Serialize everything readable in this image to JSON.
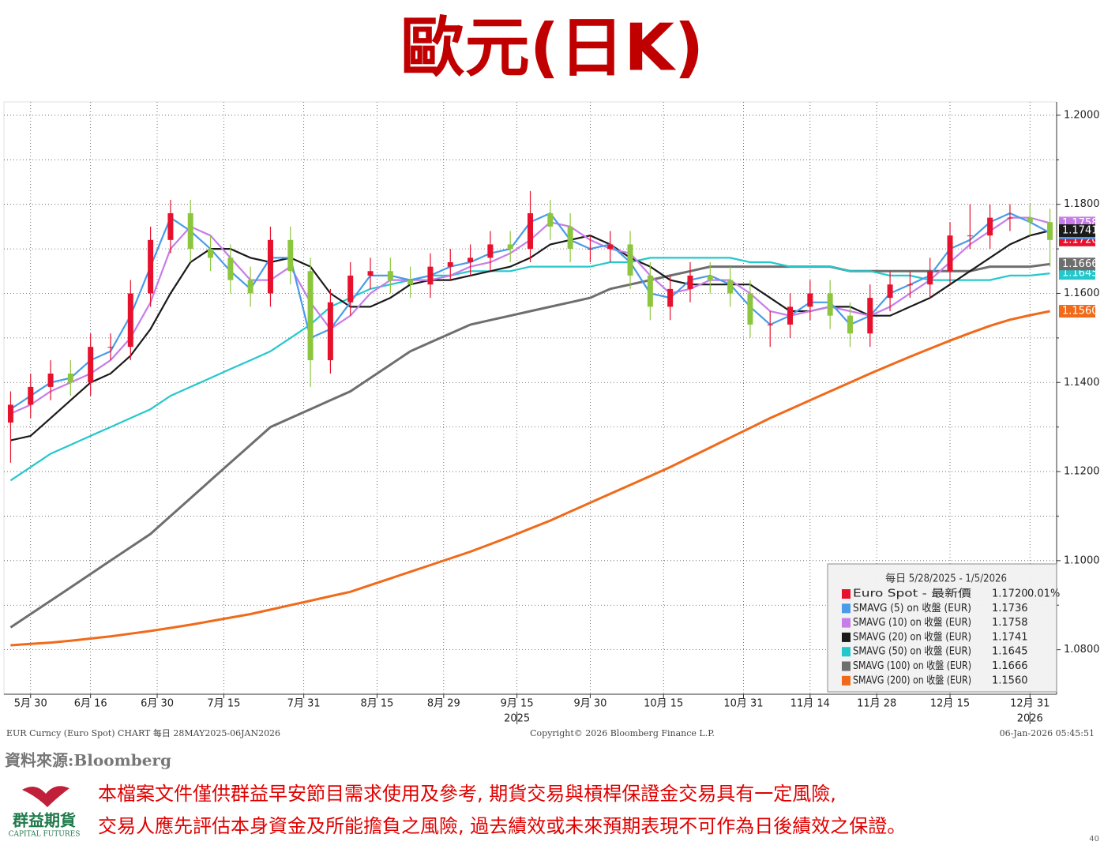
{
  "title": "歐元(日K)",
  "chart_data": {
    "type": "candlestick",
    "x": [
      0,
      3,
      6,
      9,
      12,
      15,
      18,
      21,
      24,
      27,
      30,
      33,
      36,
      39,
      42,
      45,
      48,
      51,
      54,
      57,
      60,
      63,
      66,
      69,
      72,
      75,
      78,
      81,
      84,
      87,
      90,
      93,
      96,
      99,
      102,
      105,
      108,
      111,
      114,
      117,
      120,
      123,
      126,
      129,
      132,
      135,
      138,
      141,
      144,
      147,
      150,
      153,
      156
    ],
    "xlim": [
      -1,
      157
    ],
    "xticks": [
      {
        "value": 3,
        "label": "5月 30"
      },
      {
        "value": 12,
        "label": "6月 16"
      },
      {
        "value": 22,
        "label": "6月 30"
      },
      {
        "value": 32,
        "label": "7月 15"
      },
      {
        "value": 44,
        "label": "7月 31"
      },
      {
        "value": 55,
        "label": "8月 15"
      },
      {
        "value": 65,
        "label": "8月 29"
      },
      {
        "value": 76,
        "label": "9月 15"
      },
      {
        "value": 87,
        "label": "9月 30"
      },
      {
        "value": 98,
        "label": "10月 15"
      },
      {
        "value": 110,
        "label": "10月 31"
      },
      {
        "value": 120,
        "label": "11月 14"
      },
      {
        "value": 130,
        "label": "11月 28"
      },
      {
        "value": 141,
        "label": "12月 15"
      },
      {
        "value": 153,
        "label": "12月 31"
      }
    ],
    "year_labels": [
      {
        "value": 76,
        "label": "2025"
      },
      {
        "value": 153,
        "label": "2026"
      }
    ],
    "ylim": [
      1.07,
      1.203
    ],
    "yticks": [
      {
        "value": 1.2,
        "label": "1.2000"
      },
      {
        "value": 1.18,
        "label": "1.1800"
      },
      {
        "value": 1.16,
        "label": "1.1600"
      },
      {
        "value": 1.14,
        "label": "1.1400"
      },
      {
        "value": 1.12,
        "label": "1.1200"
      },
      {
        "value": 1.1,
        "label": "1.1000"
      },
      {
        "value": 1.08,
        "label": "1.0800"
      }
    ],
    "minor_yticks": [
      1.19,
      1.17,
      1.15,
      1.13,
      1.11,
      1.09
    ],
    "grid": true,
    "legend_title": "每日 5/28/2025 - 1/5/2026",
    "legend_position": "lower right",
    "candles": {
      "name": "Euro Spot - 最新價",
      "color": "#e8112d",
      "up_color": "#e8112d",
      "down_color": "#8cc63f",
      "last": 1.172,
      "last_label": "1.1720",
      "change": {
        "value": 0.01,
        "label": "0.01%"
      },
      "open": [
        1.131,
        1.135,
        1.139,
        1.142,
        1.14,
        1.148,
        1.148,
        1.16,
        1.172,
        1.178,
        1.17,
        1.168,
        1.163,
        1.16,
        1.172,
        1.165,
        1.145,
        1.158,
        1.164,
        1.165,
        1.163,
        1.162,
        1.166,
        1.167,
        1.168,
        1.171,
        1.17,
        1.178,
        1.175,
        1.17,
        1.17,
        1.171,
        1.164,
        1.157,
        1.161,
        1.164,
        1.163,
        1.16,
        1.153,
        1.153,
        1.157,
        1.16,
        1.155,
        1.151,
        1.159,
        1.162,
        1.162,
        1.165,
        1.173,
        1.173,
        1.177,
        1.177,
        1.176
      ],
      "high": [
        1.138,
        1.142,
        1.145,
        1.145,
        1.151,
        1.151,
        1.163,
        1.175,
        1.181,
        1.181,
        1.173,
        1.171,
        1.166,
        1.175,
        1.175,
        1.168,
        1.161,
        1.167,
        1.168,
        1.168,
        1.166,
        1.169,
        1.17,
        1.171,
        1.174,
        1.174,
        1.183,
        1.181,
        1.178,
        1.173,
        1.174,
        1.174,
        1.167,
        1.164,
        1.167,
        1.167,
        1.166,
        1.163,
        1.156,
        1.16,
        1.163,
        1.163,
        1.158,
        1.162,
        1.165,
        1.165,
        1.168,
        1.176,
        1.18,
        1.18,
        1.18,
        1.18,
        1.179
      ],
      "low": [
        1.122,
        1.132,
        1.136,
        1.137,
        1.137,
        1.145,
        1.145,
        1.157,
        1.169,
        1.167,
        1.165,
        1.16,
        1.157,
        1.157,
        1.162,
        1.139,
        1.142,
        1.155,
        1.161,
        1.16,
        1.159,
        1.159,
        1.163,
        1.164,
        1.165,
        1.167,
        1.167,
        1.172,
        1.167,
        1.167,
        1.167,
        1.161,
        1.154,
        1.154,
        1.158,
        1.16,
        1.157,
        1.15,
        1.148,
        1.15,
        1.154,
        1.152,
        1.148,
        1.148,
        1.156,
        1.159,
        1.159,
        1.162,
        1.17,
        1.17,
        1.174,
        1.173,
        1.166
      ],
      "close": [
        1.135,
        1.139,
        1.142,
        1.14,
        1.148,
        1.148,
        1.16,
        1.172,
        1.178,
        1.17,
        1.168,
        1.163,
        1.16,
        1.172,
        1.165,
        1.145,
        1.158,
        1.164,
        1.165,
        1.163,
        1.162,
        1.166,
        1.167,
        1.168,
        1.171,
        1.17,
        1.178,
        1.175,
        1.17,
        1.17,
        1.171,
        1.164,
        1.157,
        1.161,
        1.164,
        1.163,
        1.16,
        1.153,
        1.153,
        1.157,
        1.16,
        1.155,
        1.151,
        1.159,
        1.162,
        1.162,
        1.165,
        1.173,
        1.173,
        1.177,
        1.177,
        1.176,
        1.172
      ]
    },
    "series": [
      {
        "name": "SMAVG (5)  on 收盤 (EUR)",
        "color": "#4a9be8",
        "last": 1.1736,
        "last_label": "1.1736",
        "values": [
          1.134,
          1.137,
          1.14,
          1.141,
          1.145,
          1.147,
          1.155,
          1.166,
          1.177,
          1.174,
          1.17,
          1.165,
          1.161,
          1.168,
          1.168,
          1.15,
          1.152,
          1.158,
          1.164,
          1.164,
          1.163,
          1.164,
          1.166,
          1.167,
          1.169,
          1.17,
          1.176,
          1.178,
          1.172,
          1.17,
          1.171,
          1.167,
          1.16,
          1.159,
          1.163,
          1.164,
          1.162,
          1.157,
          1.153,
          1.155,
          1.158,
          1.158,
          1.153,
          1.155,
          1.16,
          1.162,
          1.164,
          1.17,
          1.172,
          1.176,
          1.178,
          1.176,
          1.1736
        ]
      },
      {
        "name": "SMAVG (10)  on 收盤 (EUR)",
        "color": "#c77de8",
        "last": 1.1758,
        "last_label": "1.1758",
        "values": [
          1.133,
          1.135,
          1.138,
          1.14,
          1.142,
          1.145,
          1.15,
          1.158,
          1.17,
          1.175,
          1.173,
          1.168,
          1.163,
          1.163,
          1.166,
          1.158,
          1.152,
          1.155,
          1.16,
          1.163,
          1.163,
          1.163,
          1.164,
          1.166,
          1.167,
          1.169,
          1.172,
          1.176,
          1.175,
          1.172,
          1.17,
          1.169,
          1.164,
          1.16,
          1.161,
          1.163,
          1.163,
          1.16,
          1.156,
          1.155,
          1.156,
          1.157,
          1.156,
          1.155,
          1.157,
          1.16,
          1.163,
          1.167,
          1.171,
          1.174,
          1.177,
          1.177,
          1.1758
        ]
      },
      {
        "name": "SMAVG (20)  on 收盤 (EUR)",
        "color": "#1a1a1a",
        "last": 1.1741,
        "last_label": "1.1741",
        "values": [
          1.127,
          1.128,
          1.132,
          1.136,
          1.14,
          1.142,
          1.146,
          1.152,
          1.16,
          1.167,
          1.17,
          1.17,
          1.168,
          1.167,
          1.168,
          1.166,
          1.16,
          1.157,
          1.157,
          1.159,
          1.162,
          1.163,
          1.163,
          1.164,
          1.165,
          1.166,
          1.168,
          1.171,
          1.172,
          1.173,
          1.171,
          1.168,
          1.166,
          1.163,
          1.162,
          1.162,
          1.162,
          1.162,
          1.159,
          1.156,
          1.156,
          1.157,
          1.157,
          1.155,
          1.155,
          1.157,
          1.159,
          1.162,
          1.165,
          1.168,
          1.171,
          1.173,
          1.1741
        ]
      },
      {
        "name": "SMAVG (50)  on 收盤 (EUR)",
        "color": "#24c8cc",
        "last": 1.1645,
        "last_label": "1.1645",
        "values": [
          1.118,
          1.121,
          1.124,
          1.126,
          1.128,
          1.13,
          1.132,
          1.134,
          1.137,
          1.139,
          1.141,
          1.143,
          1.145,
          1.147,
          1.15,
          1.153,
          1.157,
          1.159,
          1.161,
          1.162,
          1.163,
          1.164,
          1.164,
          1.165,
          1.165,
          1.165,
          1.166,
          1.166,
          1.166,
          1.166,
          1.167,
          1.167,
          1.168,
          1.168,
          1.168,
          1.168,
          1.168,
          1.167,
          1.167,
          1.166,
          1.166,
          1.166,
          1.165,
          1.165,
          1.164,
          1.164,
          1.163,
          1.163,
          1.163,
          1.163,
          1.164,
          1.164,
          1.1645
        ]
      },
      {
        "name": "SMAVG (100)  on 收盤 (EUR)",
        "color": "#6e6e6e",
        "last": 1.1666,
        "last_label": "1.1666",
        "values": [
          1.085,
          1.088,
          1.091,
          1.094,
          1.097,
          1.1,
          1.103,
          1.106,
          1.11,
          1.114,
          1.118,
          1.122,
          1.126,
          1.13,
          1.132,
          1.134,
          1.136,
          1.138,
          1.141,
          1.144,
          1.147,
          1.149,
          1.151,
          1.153,
          1.154,
          1.155,
          1.156,
          1.157,
          1.158,
          1.159,
          1.161,
          1.162,
          1.163,
          1.164,
          1.165,
          1.166,
          1.166,
          1.166,
          1.166,
          1.166,
          1.166,
          1.166,
          1.165,
          1.165,
          1.165,
          1.165,
          1.165,
          1.165,
          1.165,
          1.166,
          1.166,
          1.166,
          1.1666
        ]
      },
      {
        "name": "SMAVG (200)  on 收盤 (EUR)",
        "color": "#f06a1a",
        "last": 1.156,
        "last_label": "1.1560",
        "values": [
          1.081,
          1.0813,
          1.0816,
          1.082,
          1.0825,
          1.083,
          1.0836,
          1.0842,
          1.0849,
          1.0856,
          1.0864,
          1.0872,
          1.088,
          1.089,
          1.09,
          1.091,
          1.092,
          1.093,
          1.0945,
          1.096,
          1.0975,
          1.099,
          1.1005,
          1.102,
          1.1037,
          1.1054,
          1.1072,
          1.109,
          1.111,
          1.113,
          1.115,
          1.117,
          1.119,
          1.121,
          1.1232,
          1.1254,
          1.1276,
          1.1298,
          1.132,
          1.134,
          1.136,
          1.138,
          1.14,
          1.142,
          1.1439,
          1.1458,
          1.1476,
          1.1494,
          1.1511,
          1.1527,
          1.1541,
          1.1551,
          1.156
        ]
      }
    ],
    "footer_left": "EUR Curncy (Euro Spot) CHART 每日 28MAY2025-06JAN2026",
    "footer_center": "Copyright© 2026 Bloomberg Finance L.P.",
    "footer_right": "06-Jan-2026 05:45:51"
  },
  "source": "資料來源:Bloomberg",
  "disclaimer": [
    "本檔案文件僅供群益早安節目需求使用及參考, 期貨交易與槓桿保證金交易具有一定風險,",
    "交易人應先評估本身資金及所能擔負之風險, 過去績效或未來預期表現不可作為日後績效之保證。"
  ],
  "logo": {
    "name": "群益期貨",
    "sub": "CAPITAL FUTURES"
  },
  "page_number": "40"
}
